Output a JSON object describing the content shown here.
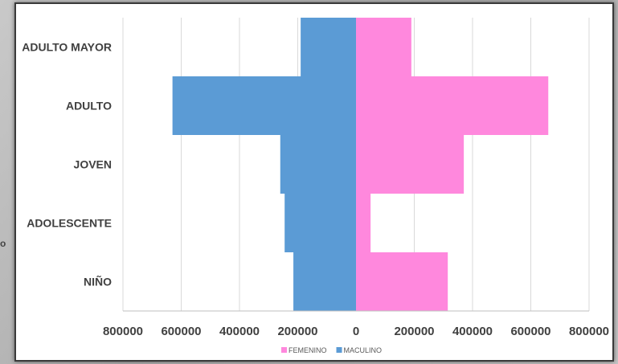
{
  "stray_text": "o",
  "chart_data": {
    "type": "bar",
    "orientation": "horizontal-population-pyramid",
    "categories": [
      "ADULTO MAYOR",
      "ADULTO",
      "JOVEN",
      "ADOLESCENTE",
      "NIÑO"
    ],
    "series": [
      {
        "name": "FEMENINO",
        "color": "#ff88dd",
        "values": [
          190000,
          660000,
          370000,
          50000,
          315000
        ]
      },
      {
        "name": "MACULINO",
        "color": "#5b9bd5",
        "values": [
          190000,
          630000,
          260000,
          245000,
          215000
        ]
      }
    ],
    "xlim": [
      -800000,
      800000
    ],
    "x_ticks": [
      -800000,
      -600000,
      -400000,
      -200000,
      0,
      200000,
      400000,
      600000,
      800000
    ],
    "x_tick_labels": [
      "800000",
      "600000",
      "400000",
      "200000",
      "0",
      "200000",
      "400000",
      "600000",
      "800000"
    ],
    "grid": true,
    "legend_position": "bottom",
    "title": "",
    "xlabel": "",
    "ylabel": ""
  }
}
